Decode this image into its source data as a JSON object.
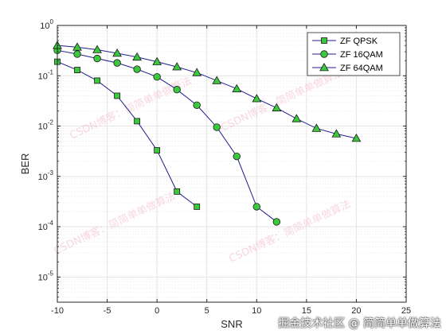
{
  "chart_data": {
    "type": "line",
    "xlabel": "SNR",
    "ylabel": "BER",
    "xlim": [
      -10,
      25
    ],
    "ylim_log10": [
      -5.5,
      0
    ],
    "yscale": "log",
    "grid": true,
    "legend_position": "top-right",
    "x_ticks": [
      -10,
      -5,
      0,
      5,
      10,
      15,
      20,
      25
    ],
    "y_ticks": [
      {
        "base": "10",
        "exp": "0"
      },
      {
        "base": "10",
        "exp": "-1"
      },
      {
        "base": "10",
        "exp": "-2"
      },
      {
        "base": "10",
        "exp": "-3"
      },
      {
        "base": "10",
        "exp": "-4"
      },
      {
        "base": "10",
        "exp": "-5"
      }
    ],
    "series": [
      {
        "name": "ZF QPSK",
        "marker": "square",
        "color": "#1f1f8f",
        "marker_fill": "#3cc83c",
        "x": [
          -10,
          -8,
          -6,
          -4,
          -2,
          0,
          2,
          4
        ],
        "y": [
          0.19,
          0.13,
          0.08,
          0.04,
          0.0125,
          0.0033,
          0.0005,
          0.00025
        ]
      },
      {
        "name": "ZF 16QAM",
        "marker": "circle",
        "color": "#1f1f8f",
        "marker_fill": "#3cc83c",
        "x": [
          -10,
          -8,
          -6,
          -4,
          -2,
          0,
          2,
          4,
          6,
          8,
          10,
          12
        ],
        "y": [
          0.32,
          0.27,
          0.22,
          0.18,
          0.135,
          0.095,
          0.053,
          0.026,
          0.0095,
          0.0025,
          0.00025,
          0.000125
        ]
      },
      {
        "name": "ZF 64QAM",
        "marker": "triangle",
        "color": "#1f1f8f",
        "marker_fill": "#3cc83c",
        "x": [
          -10,
          -8,
          -6,
          -4,
          -2,
          0,
          2,
          4,
          6,
          8,
          10,
          12,
          14,
          16,
          18,
          20
        ],
        "y": [
          0.4,
          0.37,
          0.33,
          0.28,
          0.235,
          0.19,
          0.15,
          0.115,
          0.08,
          0.055,
          0.035,
          0.023,
          0.014,
          0.009,
          0.007,
          0.0057
        ]
      }
    ]
  },
  "watermark": {
    "overlay_text": "CSDN博客：简简单单做算法",
    "footer_text": "掘金技术社区 @ 简简单单做算法"
  }
}
